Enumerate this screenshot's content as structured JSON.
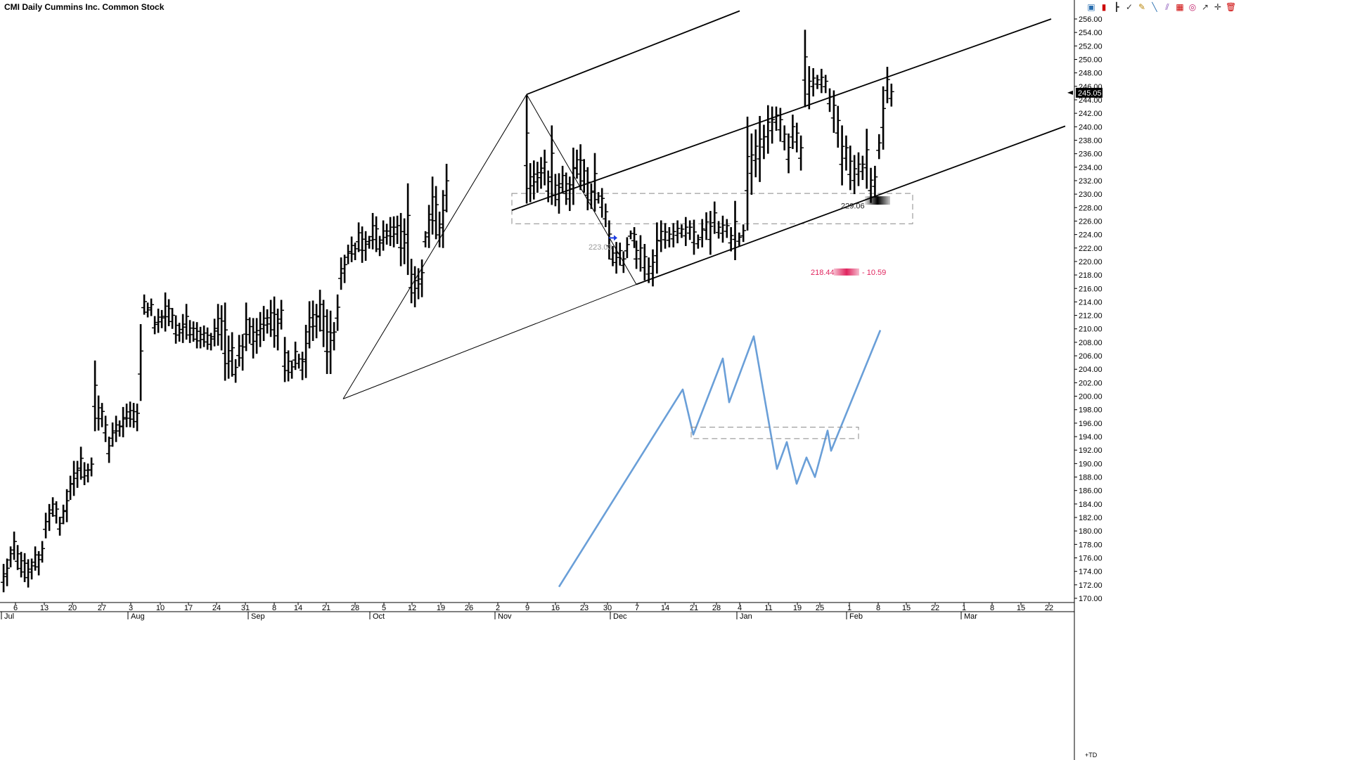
{
  "header": {
    "title": "CMI Daily Cummins Inc. Common Stock"
  },
  "toolbar": {
    "icons": [
      "screen-icon",
      "candle-icon",
      "bar-icon",
      "checkmark-icon",
      "pencil-icon",
      "line-icon",
      "multi-line-icon",
      "grid-icon",
      "target-icon",
      "arrow-icon",
      "crosshair-icon",
      "trash-icon"
    ]
  },
  "price_axis": {
    "ticks": [
      "256.00",
      "254.00",
      "252.00",
      "250.00",
      "248.00",
      "246.00",
      "244.00",
      "242.00",
      "240.00",
      "238.00",
      "236.00",
      "234.00",
      "232.00",
      "230.00",
      "228.00",
      "226.00",
      "224.00",
      "222.00",
      "220.00",
      "218.00",
      "216.00",
      "214.00",
      "212.00",
      "210.00",
      "208.00",
      "206.00",
      "204.00",
      "202.00",
      "200.00",
      "198.00",
      "196.00",
      "194.00",
      "192.00",
      "190.00",
      "188.00",
      "186.00",
      "184.00",
      "182.00",
      "180.00",
      "178.00",
      "176.00",
      "174.00",
      "172.00",
      "170.00"
    ],
    "current_price": "245.05",
    "corner_label": "+TD"
  },
  "date_axis": {
    "days": [
      "6",
      "13",
      "20",
      "27",
      "3",
      "10",
      "17",
      "24",
      "31",
      "8",
      "14",
      "21",
      "28",
      "5",
      "12",
      "19",
      "26",
      "2",
      "9",
      "16",
      "23",
      "30",
      "7",
      "14",
      "21",
      "28",
      "4",
      "11",
      "19",
      "25",
      "1",
      "8",
      "15",
      "22",
      "1",
      "8",
      "15",
      "22"
    ],
    "months": [
      "Jul",
      "Aug",
      "Sep",
      "Oct",
      "Nov",
      "Dec",
      "Jan",
      "Feb",
      "Mar"
    ]
  },
  "annotations": {
    "zone_price": "229.06",
    "arrow_price": "223.03",
    "target_price": "218.44",
    "target_delta": "- 10.59"
  },
  "colors": {
    "bars": "#000000",
    "projection": "#6a9fd8",
    "target": "#e0245e",
    "arrow": "#1f3fe0",
    "zone": "#888888"
  },
  "chart_data": {
    "type": "ohlc",
    "ylim": [
      169.5,
      257
    ],
    "price_bars": [
      [
        170.9,
        175.1
      ],
      [
        171.8,
        175.9
      ],
      [
        174.6,
        177.7
      ],
      [
        175.7,
        179.9
      ],
      [
        174.2,
        177.9
      ],
      [
        173.1,
        176.9
      ],
      [
        172.4,
        176.7
      ],
      [
        171.6,
        175.8
      ],
      [
        172.8,
        175.9
      ],
      [
        174.1,
        177.7
      ],
      [
        173.4,
        177.0
      ],
      [
        175.3,
        178.5
      ],
      [
        178.9,
        182.7
      ],
      [
        180.0,
        184.0
      ],
      [
        182.1,
        185.0
      ],
      [
        181.1,
        184.4
      ],
      [
        179.3,
        182.1
      ],
      [
        181.0,
        183.9
      ],
      [
        181.3,
        186.2
      ],
      [
        184.6,
        188.2
      ],
      [
        185.2,
        190.4
      ],
      [
        186.4,
        190.4
      ],
      [
        187.6,
        192.5
      ],
      [
        186.8,
        190.2
      ],
      [
        187.2,
        190.0
      ],
      [
        188.1,
        190.9
      ],
      [
        194.8,
        205.3
      ],
      [
        194.9,
        200.1
      ],
      [
        195.4,
        199.0
      ],
      [
        193.2,
        197.1
      ],
      [
        190.1,
        194.0
      ],
      [
        192.5,
        196.1
      ],
      [
        193.2,
        197.1
      ],
      [
        194.0,
        196.4
      ],
      [
        193.9,
        198.4
      ],
      [
        195.4,
        198.9
      ],
      [
        195.4,
        199.2
      ],
      [
        195.3,
        199.0
      ],
      [
        194.8,
        198.9
      ],
      [
        199.3,
        210.7
      ],
      [
        212.1,
        215.1
      ],
      [
        211.7,
        213.9
      ],
      [
        211.9,
        214.5
      ],
      [
        209.2,
        211.9
      ],
      [
        209.4,
        213.0
      ],
      [
        210.1,
        212.8
      ],
      [
        209.6,
        215.4
      ],
      [
        210.4,
        214.4
      ],
      [
        210.0,
        213.1
      ],
      [
        207.8,
        212.0
      ],
      [
        208.1,
        210.9
      ],
      [
        207.9,
        212.2
      ],
      [
        208.4,
        213.7
      ],
      [
        207.9,
        211.3
      ],
      [
        208.1,
        211.1
      ],
      [
        207.1,
        211.0
      ],
      [
        207.1,
        210.3
      ],
      [
        207.3,
        210.5
      ],
      [
        206.9,
        210.2
      ],
      [
        206.8,
        209.4
      ],
      [
        207.4,
        211.5
      ],
      [
        207.5,
        213.7
      ],
      [
        206.8,
        213.5
      ],
      [
        202.3,
        213.9
      ],
      [
        202.6,
        209.0
      ],
      [
        202.9,
        209.5
      ],
      [
        202.0,
        205.5
      ],
      [
        204.4,
        209.1
      ],
      [
        203.8,
        209.2
      ],
      [
        206.7,
        213.9
      ],
      [
        207.8,
        211.7
      ],
      [
        205.6,
        211.6
      ],
      [
        206.3,
        211.6
      ],
      [
        207.3,
        212.5
      ],
      [
        208.2,
        213.4
      ],
      [
        209.3,
        212.9
      ],
      [
        208.8,
        214.3
      ],
      [
        207.2,
        214.8
      ],
      [
        206.8,
        213.0
      ],
      [
        209.9,
        214.3
      ],
      [
        202.1,
        208.8
      ],
      [
        202.2,
        206.8
      ],
      [
        202.6,
        205.3
      ],
      [
        203.9,
        208.1
      ],
      [
        204.1,
        206.3
      ],
      [
        202.4,
        206.6
      ],
      [
        202.7,
        210.6
      ],
      [
        207.1,
        214.1
      ],
      [
        208.2,
        214.2
      ],
      [
        208.6,
        213.7
      ],
      [
        209.6,
        215.8
      ],
      [
        207.3,
        214.3
      ],
      [
        203.3,
        212.9
      ],
      [
        203.3,
        212.7
      ],
      [
        206.8,
        211.0
      ],
      [
        209.7,
        215.1
      ],
      [
        215.8,
        220.6
      ],
      [
        216.8,
        221.0
      ],
      [
        219.6,
        222.5
      ],
      [
        219.9,
        223.7
      ],
      [
        220.2,
        222.8
      ],
      [
        221.4,
        225.8
      ],
      [
        219.8,
        225.2
      ],
      [
        220.1,
        224.5
      ],
      [
        221.9,
        223.8
      ],
      [
        221.8,
        227.2
      ],
      [
        221.4,
        226.7
      ],
      [
        220.8,
        223.8
      ],
      [
        221.6,
        226.1
      ],
      [
        222.5,
        225.6
      ],
      [
        222.3,
        226.6
      ],
      [
        222.1,
        226.7
      ],
      [
        222.6,
        226.8
      ],
      [
        219.3,
        227.2
      ],
      [
        219.6,
        226.4
      ],
      [
        218.0,
        231.6
      ],
      [
        213.8,
        220.4
      ],
      [
        213.2,
        219.3
      ],
      [
        214.4,
        219.0
      ],
      [
        214.7,
        220.3
      ],
      [
        222.1,
        224.5
      ],
      [
        222.0,
        228.4
      ],
      [
        224.0,
        232.6
      ],
      [
        223.3,
        231.2
      ],
      [
        222.1,
        227.4
      ],
      [
        222.0,
        230.6
      ],
      [
        227.3,
        234.5
      ]
    ],
    "price_bars_b": [
      [
        228.6,
        244.7
      ],
      [
        228.8,
        234.6
      ],
      [
        229.2,
        235.0
      ],
      [
        230.2,
        234.8
      ],
      [
        230.8,
        235.5
      ],
      [
        231.3,
        236.6
      ],
      [
        228.8,
        233.5
      ],
      [
        228.4,
        240.2
      ],
      [
        228.2,
        233.0
      ],
      [
        227.1,
        233.1
      ],
      [
        230.1,
        234.2
      ],
      [
        228.4,
        233.2
      ],
      [
        227.5,
        232.6
      ],
      [
        228.4,
        236.9
      ],
      [
        232.3,
        236.6
      ],
      [
        230.6,
        237.4
      ],
      [
        230.2,
        235.2
      ],
      [
        227.6,
        234.0
      ],
      [
        227.8,
        231.6
      ],
      [
        227.4,
        236.1
      ],
      [
        228.6,
        230.3
      ],
      [
        226.5,
        230.9
      ],
      [
        225.1,
        228.6
      ],
      [
        220.3,
        226.1
      ],
      [
        219.3,
        222.3
      ],
      [
        218.2,
        222.9
      ],
      [
        219.4,
        222.8
      ],
      [
        218.3,
        221.5
      ],
      [
        220.5,
        223.6
      ],
      [
        223.3,
        224.6
      ],
      [
        222.0,
        225.1
      ]
    ],
    "price_bars_c": [
      [
        218.9,
        223.1
      ],
      [
        218.5,
        223.9
      ],
      [
        217.2,
        222.6
      ],
      [
        216.8,
        220.6
      ],
      [
        216.3,
        221.8
      ],
      [
        218.2,
        225.8
      ],
      [
        221.4,
        226.1
      ],
      [
        221.9,
        225.7
      ],
      [
        222.1,
        225.1
      ],
      [
        222.1,
        225.7
      ],
      [
        222.7,
        226.1
      ],
      [
        223.5,
        225.5
      ],
      [
        222.3,
        226.6
      ],
      [
        223.2,
        226.1
      ],
      [
        221.0,
        226.2
      ],
      [
        221.9,
        224.0
      ],
      [
        222.1,
        226.3
      ],
      [
        223.2,
        227.3
      ],
      [
        221.0,
        227.5
      ],
      [
        224.1,
        228.9
      ],
      [
        223.4,
        226.0
      ],
      [
        222.8,
        226.8
      ],
      [
        223.5,
        226.3
      ],
      [
        221.5,
        225.1
      ],
      [
        220.2,
        229.0
      ],
      [
        222.3,
        224.3
      ],
      [
        222.9,
        225.5
      ],
      [
        224.6,
        241.5
      ],
      [
        229.9,
        239.0
      ],
      [
        232.5,
        239.6
      ],
      [
        231.8,
        241.6
      ],
      [
        235.2,
        240.3
      ],
      [
        236.0,
        243.2
      ],
      [
        237.5,
        243.0
      ],
      [
        239.4,
        243.0
      ],
      [
        237.8,
        242.8
      ],
      [
        236.5,
        240.2
      ],
      [
        233.1,
        239.0
      ],
      [
        236.7,
        241.8
      ],
      [
        236.2,
        240.6
      ],
      [
        233.5,
        238.7
      ],
      [
        242.9,
        254.4
      ],
      [
        242.6,
        249.0
      ],
      [
        244.5,
        248.7
      ],
      [
        245.6,
        247.7
      ],
      [
        245.0,
        248.6
      ],
      [
        245.0,
        247.7
      ],
      [
        242.2,
        245.7
      ],
      [
        239.1,
        245.4
      ],
      [
        236.9,
        243.1
      ],
      [
        231.3,
        240.2
      ],
      [
        233.5,
        238.7
      ],
      [
        230.6,
        237.2
      ],
      [
        230.0,
        235.8
      ],
      [
        231.2,
        236.2
      ],
      [
        232.1,
        235.7
      ],
      [
        230.8,
        239.7
      ],
      [
        228.7,
        233.9
      ],
      [
        229.5,
        234.2
      ],
      [
        235.2,
        238.9
      ],
      [
        236.6,
        246.0
      ],
      [
        243.5,
        248.9
      ],
      [
        243.0,
        246.4
      ]
    ],
    "pitchfork": {
      "pivot_low": 199.6,
      "pivot_high": 244.8,
      "pivot_end": 216.6,
      "median_end": 256.0,
      "upper_end": 257.2,
      "lower_end": 240.1
    },
    "zone": {
      "top": 230.1,
      "bottom": 225.6
    },
    "projection_zone": {
      "top": 195.4,
      "bottom": 193.7
    },
    "projection_path": [
      171.7,
      201.0,
      194.3,
      205.6,
      199.1,
      208.9,
      189.2,
      193.2,
      187.0,
      190.9,
      188.0,
      194.9,
      191.9,
      209.8
    ]
  }
}
